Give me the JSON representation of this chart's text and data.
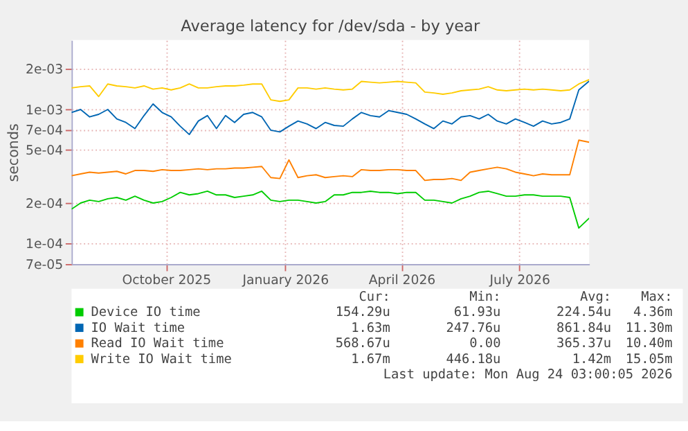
{
  "chart_data": {
    "type": "line",
    "title": "Average latency for /dev/sda - by year",
    "ylabel": "seconds",
    "log": "y",
    "grid": true,
    "legend": "bottom",
    "marker": "none",
    "line_style": "solid",
    "xlim": [
      "2025-07-20",
      "2026-08-24"
    ],
    "xticks": [
      {
        "value": "2025-10-01",
        "label": "October 2025"
      },
      {
        "value": "2026-01-01",
        "label": "January 2026"
      },
      {
        "value": "2026-04-01",
        "label": "April 2026"
      },
      {
        "value": "2026-07-01",
        "label": "July 2026"
      }
    ],
    "ylim": [
      7e-05,
      0.0033
    ],
    "yticks": [
      {
        "value": 7e-05,
        "label": "7e-05"
      },
      {
        "value": 0.0001,
        "label": "1e-04"
      },
      {
        "value": 0.0002,
        "label": "2e-04"
      },
      {
        "value": 0.0005,
        "label": "5e-04"
      },
      {
        "value": 0.0007,
        "label": "7e-04"
      },
      {
        "value": 0.001,
        "label": "1e-03"
      },
      {
        "value": 0.002,
        "label": "2e-03"
      }
    ],
    "x": [
      "2025-07-20",
      "2025-07-27",
      "2025-08-03",
      "2025-08-10",
      "2025-08-17",
      "2025-08-24",
      "2025-08-31",
      "2025-09-07",
      "2025-09-14",
      "2025-09-21",
      "2025-09-28",
      "2025-10-05",
      "2025-10-12",
      "2025-10-19",
      "2025-10-26",
      "2025-11-02",
      "2025-11-09",
      "2025-11-16",
      "2025-11-23",
      "2025-11-30",
      "2025-12-07",
      "2025-12-14",
      "2025-12-21",
      "2025-12-28",
      "2026-01-04",
      "2026-01-11",
      "2026-01-18",
      "2026-01-25",
      "2026-02-01",
      "2026-02-08",
      "2026-02-15",
      "2026-02-22",
      "2026-03-01",
      "2026-03-08",
      "2026-03-15",
      "2026-03-22",
      "2026-03-29",
      "2026-04-05",
      "2026-04-12",
      "2026-04-19",
      "2026-04-26",
      "2026-05-03",
      "2026-05-10",
      "2026-05-17",
      "2026-05-24",
      "2026-05-31",
      "2026-06-07",
      "2026-06-14",
      "2026-06-21",
      "2026-06-28",
      "2026-07-05",
      "2026-07-12",
      "2026-07-19",
      "2026-07-26",
      "2026-08-02",
      "2026-08-09",
      "2026-08-16",
      "2026-08-24"
    ],
    "series": [
      {
        "name": "Device IO time",
        "color": "#00cc00",
        "values": [
          0.00018,
          0.0002,
          0.00021,
          0.000205,
          0.000215,
          0.00022,
          0.00021,
          0.000225,
          0.00021,
          0.0002,
          0.000205,
          0.00022,
          0.00024,
          0.00023,
          0.000235,
          0.000245,
          0.00023,
          0.00023,
          0.00022,
          0.000225,
          0.00023,
          0.000245,
          0.00021,
          0.000205,
          0.00021,
          0.00021,
          0.000205,
          0.0002,
          0.000205,
          0.00023,
          0.00023,
          0.00024,
          0.00024,
          0.000245,
          0.00024,
          0.00024,
          0.000235,
          0.00024,
          0.00024,
          0.00021,
          0.00021,
          0.000205,
          0.0002,
          0.000215,
          0.000225,
          0.00024,
          0.000245,
          0.000235,
          0.000225,
          0.000225,
          0.00023,
          0.00023,
          0.000225,
          0.000225,
          0.000225,
          0.00022,
          0.00013,
          0.000154
        ]
      },
      {
        "name": "IO Wait time",
        "color": "#0066b3",
        "values": [
          0.00095,
          0.001,
          0.00088,
          0.00092,
          0.001,
          0.00085,
          0.0008,
          0.00072,
          0.0009,
          0.0011,
          0.00095,
          0.00088,
          0.00075,
          0.00065,
          0.00082,
          0.0009,
          0.00072,
          0.0009,
          0.0008,
          0.00092,
          0.00095,
          0.00088,
          0.0007,
          0.00068,
          0.00075,
          0.00082,
          0.00078,
          0.00072,
          0.0008,
          0.00076,
          0.00075,
          0.00085,
          0.00095,
          0.0009,
          0.00088,
          0.00098,
          0.00095,
          0.00092,
          0.00085,
          0.00078,
          0.00072,
          0.00082,
          0.00078,
          0.00088,
          0.0009,
          0.00085,
          0.00092,
          0.00082,
          0.00078,
          0.00085,
          0.0008,
          0.00075,
          0.00082,
          0.00078,
          0.0008,
          0.00085,
          0.0014,
          0.00163
        ]
      },
      {
        "name": "Read IO Wait time",
        "color": "#ff8000",
        "values": [
          0.00032,
          0.00033,
          0.00034,
          0.000335,
          0.00034,
          0.000345,
          0.00033,
          0.00035,
          0.00035,
          0.000345,
          0.000355,
          0.00035,
          0.00035,
          0.000355,
          0.00036,
          0.000355,
          0.00036,
          0.00036,
          0.000365,
          0.000365,
          0.00037,
          0.000375,
          0.00031,
          0.000305,
          0.00042,
          0.00031,
          0.00032,
          0.000325,
          0.00031,
          0.000315,
          0.00032,
          0.000315,
          0.000355,
          0.00035,
          0.00035,
          0.000355,
          0.000355,
          0.00035,
          0.00035,
          0.000295,
          0.0003,
          0.0003,
          0.000305,
          0.000295,
          0.00034,
          0.00035,
          0.00036,
          0.00037,
          0.00036,
          0.00034,
          0.00033,
          0.00032,
          0.00033,
          0.000325,
          0.000325,
          0.000325,
          0.00059,
          0.000569
        ]
      },
      {
        "name": "Write IO Wait time",
        "color": "#ffcc00",
        "values": [
          0.00145,
          0.00148,
          0.0015,
          0.00125,
          0.00155,
          0.0015,
          0.00148,
          0.00145,
          0.0015,
          0.00142,
          0.00145,
          0.0014,
          0.00145,
          0.00155,
          0.00145,
          0.00145,
          0.00148,
          0.0015,
          0.0015,
          0.00152,
          0.00155,
          0.00155,
          0.00118,
          0.00115,
          0.00118,
          0.00145,
          0.00145,
          0.00142,
          0.00145,
          0.00142,
          0.0014,
          0.00142,
          0.00162,
          0.0016,
          0.00158,
          0.0016,
          0.00162,
          0.0016,
          0.00158,
          0.00135,
          0.00133,
          0.0013,
          0.00133,
          0.00138,
          0.0014,
          0.00142,
          0.00148,
          0.0014,
          0.00138,
          0.0014,
          0.00142,
          0.0014,
          0.00142,
          0.0014,
          0.00138,
          0.0014,
          0.00155,
          0.00167
        ]
      }
    ],
    "annotations": [
      "Cur:",
      "Min:",
      "Avg:",
      "Max:",
      "154.29u",
      "61.93u",
      "224.54u",
      "4.36m",
      "1.63m",
      "247.76u",
      "861.84u",
      "11.30m",
      "568.67u",
      "0.00",
      "365.37u",
      "10.40m",
      "1.67m",
      "446.18u",
      "1.42m",
      "15.05m",
      "Last update: Mon Aug 24 03:00:05 2026"
    ]
  }
}
